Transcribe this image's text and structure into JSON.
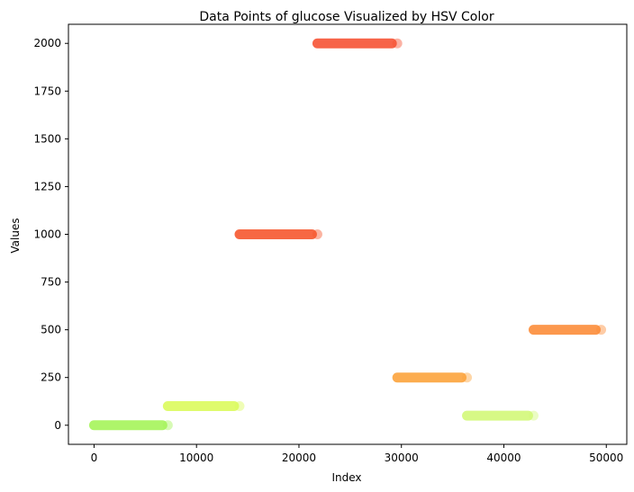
{
  "chart_data": {
    "type": "scatter",
    "title": "Data Points of glucose Visualized by HSV Color",
    "xlabel": "Index",
    "ylabel": "Values",
    "xlim": [
      -2500,
      52000
    ],
    "ylim": [
      -100,
      2100
    ],
    "x_ticks": [
      0,
      10000,
      20000,
      30000,
      40000,
      50000
    ],
    "y_ticks": [
      0,
      250,
      500,
      750,
      1000,
      1250,
      1500,
      1750,
      2000
    ],
    "grid": false,
    "segments": [
      {
        "x_start": 0,
        "x_end": 7200,
        "y": 0,
        "color": "#a6f55a"
      },
      {
        "x_start": 7200,
        "x_end": 14200,
        "y": 100,
        "color": "#dcfb5e"
      },
      {
        "x_start": 14200,
        "x_end": 21800,
        "y": 1000,
        "color": "#f7582f"
      },
      {
        "x_start": 21800,
        "x_end": 29600,
        "y": 2000,
        "color": "#f75436"
      },
      {
        "x_start": 29600,
        "x_end": 36400,
        "y": 250,
        "color": "#fca43c"
      },
      {
        "x_start": 36400,
        "x_end": 42900,
        "y": 50,
        "color": "#d3f97a"
      },
      {
        "x_start": 42900,
        "x_end": 49500,
        "y": 500,
        "color": "#fc8d3a"
      }
    ]
  }
}
